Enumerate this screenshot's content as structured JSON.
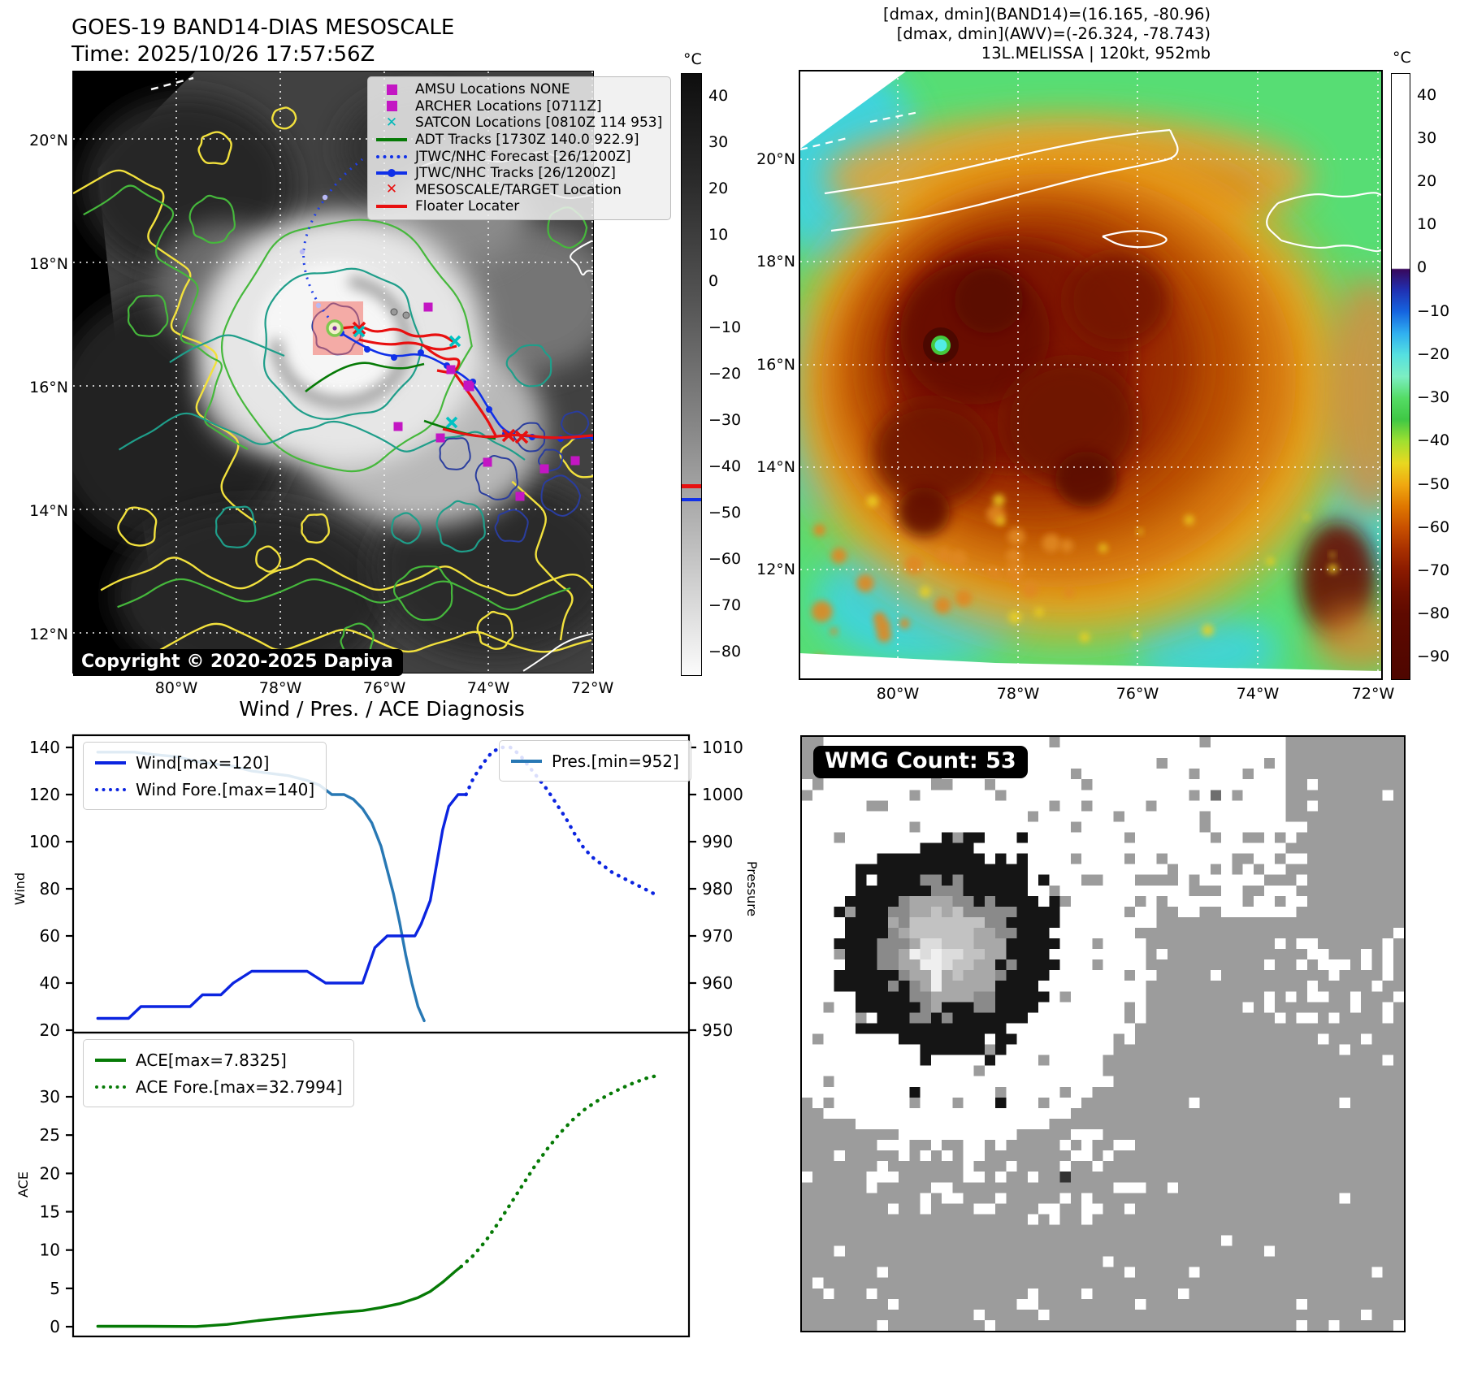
{
  "header_left": {
    "title": "GOES-19 BAND14-DIAS MESOSCALE",
    "time": "Time: 2025/10/26 17:57:56Z"
  },
  "header_right": {
    "line1": "[dmax, dmin](BAND14)=(16.165, -80.96)",
    "line2": "[dmax, dmin](AWV)=(-26.324, -78.743)",
    "line3": "13L.MELISSA | 120kt, 952mb"
  },
  "left_map": {
    "lat_labels": [
      "20°N",
      "18°N",
      "16°N",
      "14°N",
      "12°N"
    ],
    "lon_labels": [
      "80°W",
      "78°W",
      "76°W",
      "74°W",
      "72°W"
    ],
    "copyright": "Copyright © 2020-2025 Dapiya",
    "colorbar": {
      "unit": "°C",
      "ticks": [
        "40",
        "30",
        "20",
        "10",
        "0",
        "−10",
        "−20",
        "−30",
        "−40",
        "−50",
        "−60",
        "−70",
        "−80"
      ]
    },
    "legend": [
      {
        "marker": "square",
        "color": "#c316c3",
        "label": "AMSU Locations NONE"
      },
      {
        "marker": "square",
        "color": "#c316c3",
        "label": "ARCHER Locations [0711Z]"
      },
      {
        "marker": "x",
        "color": "#00b8b8",
        "label": "SATCON Locations [0810Z 114 953]"
      },
      {
        "marker": "line",
        "color": "#067a06",
        "label": "ADT Tracks [1730Z 140.0 922.9]"
      },
      {
        "marker": "dotted",
        "color": "#1030e8",
        "label": "JTWC/NHC Forecast [26/1200Z]"
      },
      {
        "marker": "line-dot",
        "color": "#1030e8",
        "label": "JTWC/NHC Tracks [26/1200Z]"
      },
      {
        "marker": "x",
        "color": "#e81010",
        "label": "MESOSCALE/TARGET Location"
      },
      {
        "marker": "line",
        "color": "#e81010",
        "label": "Floater Locater"
      }
    ]
  },
  "right_map": {
    "lat_labels": [
      "20°N",
      "18°N",
      "16°N",
      "14°N",
      "12°N"
    ],
    "lon_labels": [
      "80°W",
      "78°W",
      "76°W",
      "74°W",
      "72°W"
    ],
    "colorbar": {
      "unit": "°C",
      "ticks": [
        "40",
        "30",
        "20",
        "10",
        "0",
        "−10",
        "−20",
        "−30",
        "−40",
        "−50",
        "−60",
        "−70",
        "−80",
        "−90"
      ]
    }
  },
  "wmg": {
    "count_label": "WMG Count: 53"
  },
  "chart_data": {
    "type": "line",
    "title": "Wind / Pres. / ACE Diagnosis",
    "x_axis": {
      "range": [
        0,
        1
      ],
      "tick_labels_visible": false
    },
    "panels": [
      {
        "name": "wind_pressure",
        "left_axis": {
          "label": "Wind",
          "ticks": [
            140,
            120,
            100,
            80,
            60,
            40,
            20
          ],
          "range": [
            20,
            140
          ]
        },
        "right_axis": {
          "label": "Pressure",
          "ticks": [
            1010,
            1000,
            990,
            980,
            970,
            960,
            950
          ],
          "range": [
            950,
            1010
          ]
        },
        "series": [
          {
            "name": "Wind[max=120]",
            "axis": "left",
            "style": "solid",
            "color": "#0b24e0",
            "points": [
              [
                0.04,
                25
              ],
              [
                0.09,
                25
              ],
              [
                0.11,
                30
              ],
              [
                0.16,
                30
              ],
              [
                0.19,
                30
              ],
              [
                0.21,
                35
              ],
              [
                0.24,
                35
              ],
              [
                0.26,
                40
              ],
              [
                0.29,
                45
              ],
              [
                0.34,
                45
              ],
              [
                0.38,
                45
              ],
              [
                0.41,
                40
              ],
              [
                0.45,
                40
              ],
              [
                0.47,
                40
              ],
              [
                0.49,
                55
              ],
              [
                0.51,
                60
              ],
              [
                0.54,
                60
              ],
              [
                0.555,
                60
              ],
              [
                0.565,
                65
              ],
              [
                0.58,
                75
              ],
              [
                0.59,
                90
              ],
              [
                0.6,
                105
              ],
              [
                0.61,
                115
              ],
              [
                0.625,
                120
              ],
              [
                0.638,
                120
              ]
            ]
          },
          {
            "name": "Wind Fore.[max=140]",
            "axis": "left",
            "style": "dotted",
            "color": "#0b24e0",
            "points": [
              [
                0.638,
                120
              ],
              [
                0.65,
                127
              ],
              [
                0.665,
                133
              ],
              [
                0.68,
                138
              ],
              [
                0.695,
                140
              ],
              [
                0.71,
                140
              ],
              [
                0.725,
                137
              ],
              [
                0.74,
                132
              ],
              [
                0.755,
                127
              ],
              [
                0.77,
                122
              ],
              [
                0.785,
                116
              ],
              [
                0.8,
                110
              ],
              [
                0.815,
                103
              ],
              [
                0.83,
                97
              ],
              [
                0.845,
                93
              ],
              [
                0.86,
                90
              ],
              [
                0.875,
                87
              ],
              [
                0.89,
                85
              ],
              [
                0.905,
                83
              ],
              [
                0.92,
                81
              ],
              [
                0.935,
                79
              ],
              [
                0.95,
                77
              ]
            ]
          },
          {
            "name": "Pres.[min=952]",
            "axis": "right",
            "style": "solid",
            "color": "#2878b4",
            "points": [
              [
                0.04,
                1009
              ],
              [
                0.1,
                1009
              ],
              [
                0.13,
                1008.5
              ],
              [
                0.17,
                1008
              ],
              [
                0.2,
                1007
              ],
              [
                0.23,
                1006.5
              ],
              [
                0.26,
                1006
              ],
              [
                0.29,
                1005
              ],
              [
                0.32,
                1004.5
              ],
              [
                0.35,
                1004
              ],
              [
                0.38,
                1003
              ],
              [
                0.4,
                1002
              ],
              [
                0.42,
                1000
              ],
              [
                0.44,
                1000
              ],
              [
                0.455,
                999
              ],
              [
                0.47,
                997
              ],
              [
                0.485,
                994
              ],
              [
                0.5,
                989
              ],
              [
                0.51,
                984
              ],
              [
                0.52,
                979
              ],
              [
                0.53,
                973
              ],
              [
                0.54,
                966
              ],
              [
                0.55,
                960
              ],
              [
                0.56,
                955
              ],
              [
                0.57,
                952
              ]
            ]
          }
        ]
      },
      {
        "name": "ace",
        "left_axis": {
          "label": "ACE",
          "ticks": [
            30,
            25,
            20,
            15,
            10,
            5,
            0
          ],
          "range": [
            0,
            33
          ]
        },
        "series": [
          {
            "name": "ACE[max=7.8325]",
            "axis": "left",
            "style": "solid",
            "color": "#067a06",
            "points": [
              [
                0.04,
                0.05
              ],
              [
                0.12,
                0.05
              ],
              [
                0.2,
                0.02
              ],
              [
                0.25,
                0.3
              ],
              [
                0.3,
                0.8
              ],
              [
                0.35,
                1.2
              ],
              [
                0.4,
                1.6
              ],
              [
                0.44,
                1.9
              ],
              [
                0.47,
                2.1
              ],
              [
                0.5,
                2.5
              ],
              [
                0.53,
                3.0
              ],
              [
                0.56,
                3.8
              ],
              [
                0.58,
                4.6
              ],
              [
                0.6,
                5.8
              ],
              [
                0.62,
                7.2
              ],
              [
                0.63,
                7.83
              ]
            ]
          },
          {
            "name": "ACE Fore.[max=32.7994]",
            "axis": "left",
            "style": "dotted",
            "color": "#067a06",
            "points": [
              [
                0.63,
                7.83
              ],
              [
                0.65,
                9.3
              ],
              [
                0.67,
                11.2
              ],
              [
                0.69,
                13.5
              ],
              [
                0.71,
                16
              ],
              [
                0.73,
                18.5
              ],
              [
                0.75,
                21
              ],
              [
                0.77,
                23.2
              ],
              [
                0.79,
                25.2
              ],
              [
                0.81,
                26.9
              ],
              [
                0.83,
                28.3
              ],
              [
                0.85,
                29.4
              ],
              [
                0.87,
                30.3
              ],
              [
                0.89,
                31.1
              ],
              [
                0.91,
                31.8
              ],
              [
                0.93,
                32.4
              ],
              [
                0.95,
                32.8
              ]
            ]
          }
        ]
      }
    ]
  }
}
